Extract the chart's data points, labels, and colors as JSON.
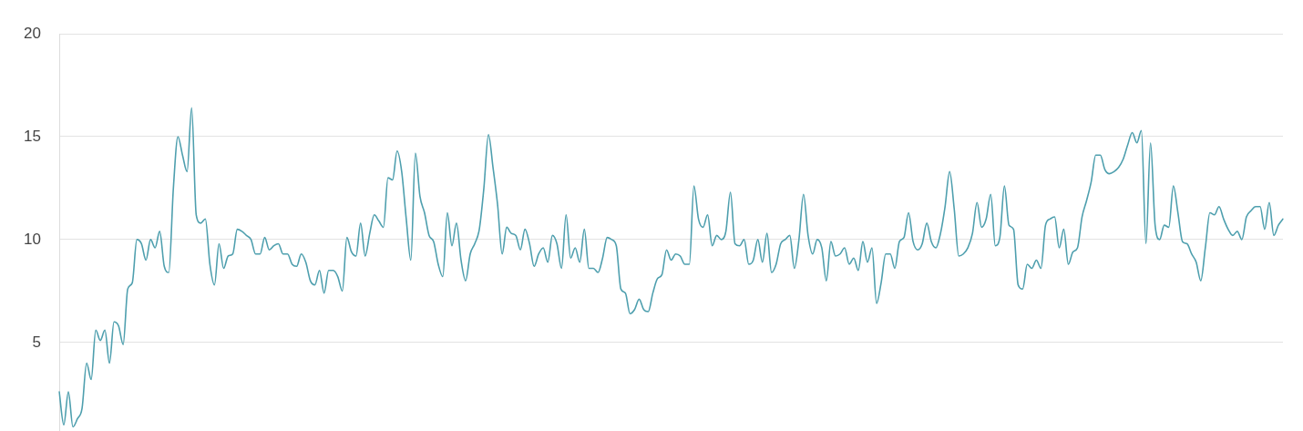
{
  "chart_data": {
    "type": "line",
    "categories": [
      null,
      null,
      null,
      null,
      null,
      null,
      null,
      null,
      null,
      null,
      null,
      null,
      null,
      null,
      null,
      null,
      null,
      null,
      null,
      null,
      null,
      null,
      null,
      null,
      null,
      null,
      null,
      null,
      null,
      null,
      null,
      null,
      null,
      null,
      null,
      null,
      null,
      null,
      null,
      null,
      null,
      null,
      null,
      null,
      null,
      null,
      null,
      null,
      null,
      null,
      null,
      null,
      null,
      null,
      null,
      null,
      null,
      null,
      null,
      null,
      null,
      null,
      null,
      null,
      null,
      null,
      null,
      null,
      null,
      null,
      null,
      null,
      null,
      null,
      null,
      null,
      null,
      null,
      null,
      null,
      null,
      null,
      null,
      null,
      null,
      null,
      null,
      null,
      null,
      null,
      null,
      null,
      null,
      null,
      null,
      null,
      null,
      null,
      null,
      null,
      null,
      null,
      null,
      null,
      null,
      null,
      null,
      null,
      null,
      null,
      null,
      null,
      null,
      null,
      null,
      null,
      null,
      null,
      null,
      null,
      null,
      null,
      null,
      null,
      null,
      null,
      null,
      null,
      null,
      null,
      null,
      null,
      null,
      null,
      null,
      null,
      null,
      null,
      null,
      null,
      null,
      null,
      null,
      null,
      null,
      null,
      null,
      null,
      null,
      null,
      null,
      null,
      null,
      null,
      null,
      null,
      null,
      null,
      null,
      null,
      null,
      null,
      null,
      null,
      null,
      null,
      null,
      null,
      null,
      null,
      null,
      null,
      null,
      null,
      null,
      null,
      null,
      null,
      null,
      null,
      null,
      null,
      null,
      null,
      null,
      null,
      null,
      null,
      null,
      null,
      null,
      null,
      null,
      null,
      null,
      null,
      null,
      null,
      null,
      null,
      null,
      null,
      null,
      null,
      null,
      null,
      null,
      null,
      null,
      null,
      null,
      null,
      null,
      null,
      null,
      null,
      null,
      null,
      null,
      null,
      null,
      null,
      null,
      null,
      null,
      null,
      null,
      null,
      null,
      null,
      null,
      null,
      null,
      null,
      null,
      null,
      null,
      null,
      null,
      null,
      null,
      null,
      null,
      null,
      null,
      null,
      null,
      null,
      null,
      null,
      null,
      null,
      null,
      null,
      null,
      null,
      null,
      null,
      null,
      null,
      null,
      null,
      null,
      null,
      null,
      null,
      null,
      null,
      null
    ],
    "series": [
      {
        "color": "#4e9fae",
        "values": [
          2.6,
          1.0,
          2.6,
          0.9,
          1.3,
          1.8,
          4.0,
          3.2,
          5.6,
          5.1,
          5.6,
          4.0,
          6.0,
          5.8,
          4.9,
          7.6,
          7.9,
          10.0,
          9.8,
          9.0,
          10.0,
          9.6,
          10.4,
          8.7,
          8.4,
          12.5,
          15.0,
          14.1,
          13.3,
          16.4,
          11.2,
          10.8,
          11.0,
          8.8,
          7.8,
          9.8,
          8.6,
          9.2,
          9.3,
          10.5,
          10.4,
          10.2,
          10.0,
          9.3,
          9.3,
          10.1,
          9.5,
          9.7,
          9.8,
          9.3,
          9.3,
          8.8,
          8.7,
          9.3,
          8.9,
          8.0,
          7.8,
          8.5,
          7.4,
          8.5,
          8.5,
          8.2,
          7.5,
          10.1,
          9.4,
          9.2,
          10.8,
          9.2,
          10.3,
          11.2,
          10.9,
          10.6,
          13.0,
          12.9,
          14.3,
          13.3,
          11.0,
          9.0,
          14.2,
          12.1,
          11.3,
          10.2,
          9.9,
          8.8,
          8.2,
          11.3,
          9.7,
          10.8,
          9.0,
          8.0,
          9.3,
          9.8,
          10.5,
          12.5,
          15.1,
          13.5,
          11.7,
          9.3,
          10.6,
          10.3,
          10.2,
          9.5,
          10.5,
          9.8,
          8.7,
          9.3,
          9.6,
          8.9,
          10.2,
          9.8,
          8.6,
          11.2,
          9.1,
          9.6,
          8.9,
          10.5,
          8.6,
          8.6,
          8.4,
          9.1,
          10.1,
          10.0,
          9.7,
          7.6,
          7.4,
          6.4,
          6.6,
          7.1,
          6.6,
          6.5,
          7.4,
          8.1,
          8.3,
          9.5,
          9.0,
          9.3,
          9.2,
          8.8,
          8.8,
          12.6,
          11.0,
          10.6,
          11.2,
          9.7,
          10.2,
          10.0,
          10.4,
          12.3,
          9.8,
          9.7,
          10.0,
          8.8,
          9.0,
          10.0,
          8.9,
          10.3,
          8.4,
          8.8,
          9.8,
          10.0,
          10.2,
          8.6,
          10.0,
          12.2,
          10.2,
          9.3,
          10.0,
          9.6,
          8.0,
          9.9,
          9.2,
          9.3,
          9.6,
          8.8,
          9.1,
          8.5,
          9.9,
          8.9,
          9.6,
          6.9,
          7.9,
          9.3,
          9.3,
          8.6,
          9.9,
          10.1,
          11.3,
          9.9,
          9.5,
          9.8,
          10.8,
          9.9,
          9.6,
          10.3,
          11.6,
          13.3,
          11.5,
          9.2,
          9.3,
          9.6,
          10.3,
          11.8,
          10.6,
          11.0,
          12.2,
          9.7,
          10.1,
          12.6,
          10.7,
          10.5,
          7.8,
          7.6,
          8.8,
          8.6,
          9.0,
          8.6,
          10.7,
          11.0,
          11.1,
          9.6,
          10.5,
          8.8,
          9.4,
          9.6,
          11.1,
          11.9,
          12.8,
          14.1,
          14.1,
          13.4,
          13.2,
          13.3,
          13.5,
          13.9,
          14.6,
          15.2,
          14.7,
          15.3,
          9.8,
          14.7,
          10.7,
          10.0,
          10.7,
          10.6,
          12.6,
          11.3,
          9.9,
          9.8,
          9.3,
          8.9,
          8.0,
          9.6,
          11.3,
          11.2,
          11.6,
          11.0,
          10.5,
          10.2,
          10.4,
          10.0,
          11.1,
          11.4,
          11.6,
          11.6,
          10.5,
          11.8,
          10.2,
          10.7,
          11.0
        ]
      }
    ],
    "ylim": [
      0.7,
      20
    ],
    "yticks": [
      5,
      10,
      15,
      20
    ],
    "grid": "y",
    "tick_labels": "y",
    "marker": "none",
    "line_style": "solid"
  }
}
